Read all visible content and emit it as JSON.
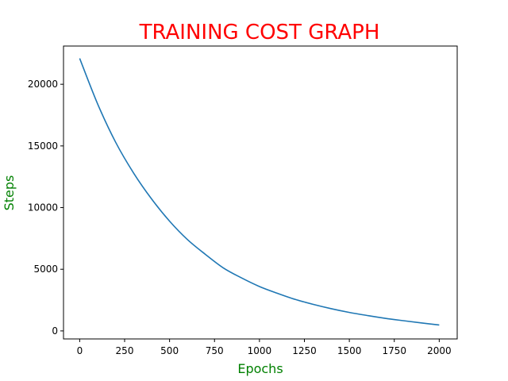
{
  "chart_data": {
    "type": "line",
    "title": "TRAINING COST GRAPH",
    "xlabel": "Epochs",
    "ylabel": "Steps",
    "xlim": [
      -90,
      2100
    ],
    "ylim": [
      -650,
      23100
    ],
    "xticks": [
      0,
      250,
      500,
      750,
      1000,
      1250,
      1500,
      1750,
      2000
    ],
    "yticks": [
      0,
      5000,
      10000,
      15000,
      20000
    ],
    "grid": false,
    "legend": "none",
    "series": [
      {
        "x": [
          0,
          100,
          200,
          300,
          400,
          500,
          600,
          700,
          800,
          900,
          1000,
          1100,
          1200,
          1300,
          1400,
          1500,
          1600,
          1700,
          1800,
          1900,
          2000
        ],
        "y": [
          22100,
          18400,
          15300,
          12800,
          10700,
          8900,
          7400,
          6200,
          5100,
          4300,
          3600,
          3050,
          2550,
          2150,
          1800,
          1500,
          1250,
          1020,
          830,
          650,
          480
        ],
        "color": "#1f77b4"
      }
    ]
  },
  "colors": {
    "title": "#ff0000",
    "axis_label": "#008000",
    "line": "#1f77b4"
  }
}
